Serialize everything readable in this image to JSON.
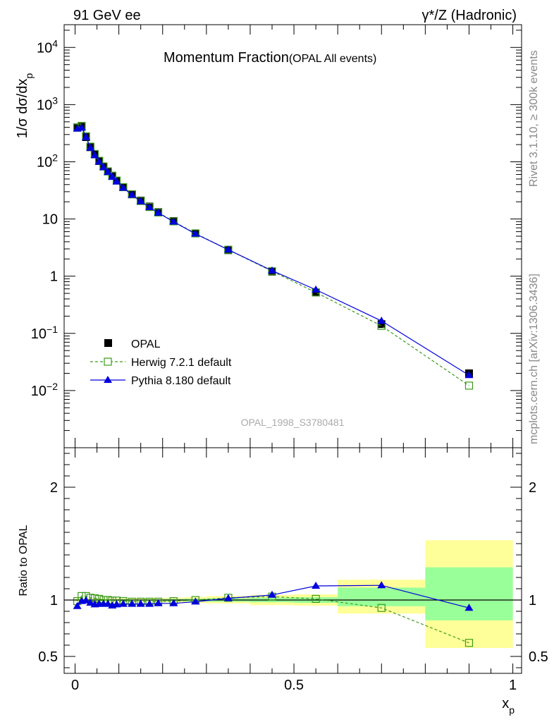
{
  "header": {
    "left": "91 GeV ee",
    "right": "γ*/Z (Hadronic)"
  },
  "side_labels": {
    "rivet": "Rivet 3.1.10, ≥ 300k events",
    "mcplots": "mcplots.cern.ch [arXiv:1306.3436]"
  },
  "chart_data": [
    {
      "type": "scatter",
      "title_main": "Momentum Fraction",
      "title_sub": "(OPAL All events)",
      "watermark": "OPAL_1998_S3780481",
      "ylabel": "1/σ dσ/dx_p",
      "yscale": "log",
      "ylim": [
        0.001,
        25000
      ],
      "xlim": [
        -0.025,
        1.02
      ],
      "grid": false,
      "legend_position": "bottom-left",
      "y_ticks": [
        {
          "value": 0.01,
          "base": "10",
          "exp": "−2"
        },
        {
          "value": 0.1,
          "base": "10",
          "exp": "−1"
        },
        {
          "value": 1,
          "base": "1",
          "exp": ""
        },
        {
          "value": 10,
          "base": "10",
          "exp": ""
        },
        {
          "value": 100,
          "base": "10",
          "exp": "2"
        },
        {
          "value": 1000,
          "base": "10",
          "exp": "3"
        },
        {
          "value": 10000,
          "base": "10",
          "exp": "4"
        }
      ],
      "x": [
        0.005,
        0.015,
        0.025,
        0.035,
        0.045,
        0.055,
        0.065,
        0.075,
        0.085,
        0.095,
        0.11,
        0.13,
        0.15,
        0.17,
        0.19,
        0.225,
        0.275,
        0.35,
        0.45,
        0.55,
        0.7,
        0.9
      ],
      "series": [
        {
          "name": "OPAL",
          "marker": "square-filled",
          "color": "#000000",
          "values": [
            400,
            410,
            270,
            180,
            135,
            103,
            83,
            68,
            57,
            47,
            36,
            27,
            21,
            16.5,
            13.2,
            9.2,
            5.6,
            2.85,
            1.2,
            0.52,
            0.145,
            0.02
          ]
        },
        {
          "name": "Herwig 7.2.1 default",
          "marker": "square-open",
          "color": "#3a9a1a",
          "dashed": true,
          "values": [
            395,
            425,
            280,
            184,
            137,
            104,
            83,
            68,
            57,
            47,
            36,
            27,
            20.6,
            16.2,
            13.0,
            9.1,
            5.6,
            2.9,
            1.22,
            0.52,
            0.135,
            0.0122
          ]
        },
        {
          "name": "Pythia 8.180 default",
          "marker": "triangle-filled",
          "color": "#0000dd",
          "dashed": false,
          "values": [
            378,
            395,
            268,
            175,
            130,
            100,
            80,
            66,
            54,
            45,
            35,
            26.3,
            20.3,
            16.0,
            12.8,
            8.95,
            5.5,
            2.9,
            1.25,
            0.58,
            0.165,
            0.0185
          ]
        }
      ]
    },
    {
      "type": "scatter",
      "ylabel": "Ratio to OPAL",
      "xlabel": "x_p",
      "ylim": [
        0.35,
        2.35
      ],
      "xlim": [
        -0.025,
        1.02
      ],
      "y_ticks": [
        "0.5",
        "1",
        "2"
      ],
      "x_ticks": [
        "0",
        "0.5",
        "1"
      ],
      "reference_line": 1,
      "x": [
        0.005,
        0.015,
        0.025,
        0.035,
        0.045,
        0.055,
        0.065,
        0.075,
        0.085,
        0.095,
        0.11,
        0.13,
        0.15,
        0.17,
        0.19,
        0.225,
        0.275,
        0.35,
        0.45,
        0.55,
        0.7,
        0.9
      ],
      "uncertainty_bands": [
        {
          "x0": 0.0,
          "x1": 0.2,
          "yellow": [
            0.985,
            1.015
          ],
          "green": [
            0.993,
            1.007
          ]
        },
        {
          "x0": 0.2,
          "x1": 0.25,
          "yellow": [
            0.98,
            1.02
          ],
          "green": [
            0.99,
            1.01
          ]
        },
        {
          "x0": 0.25,
          "x1": 0.3,
          "yellow": [
            0.975,
            1.025
          ],
          "green": [
            0.988,
            1.012
          ]
        },
        {
          "x0": 0.3,
          "x1": 0.4,
          "yellow": [
            0.97,
            1.035
          ],
          "green": [
            0.985,
            1.015
          ]
        },
        {
          "x0": 0.4,
          "x1": 0.5,
          "yellow": [
            0.955,
            1.045
          ],
          "green": [
            0.98,
            1.02
          ]
        },
        {
          "x0": 0.5,
          "x1": 0.6,
          "yellow": [
            0.95,
            1.05
          ],
          "green": [
            0.975,
            1.025
          ]
        },
        {
          "x0": 0.6,
          "x1": 0.8,
          "yellow": [
            0.88,
            1.18
          ],
          "green": [
            0.945,
            1.11
          ]
        },
        {
          "x0": 0.8,
          "x1": 1.0,
          "yellow": [
            0.575,
            1.53
          ],
          "green": [
            0.82,
            1.29
          ]
        }
      ],
      "series": [
        {
          "name": "Herwig 7.2.1 default",
          "values": [
            0.99,
            1.035,
            1.035,
            1.02,
            1.015,
            1.01,
            1.0,
            1.0,
            0.995,
            0.995,
            0.99,
            0.985,
            0.985,
            0.985,
            0.985,
            0.99,
            1.0,
            1.02,
            1.03,
            1.01,
            0.93,
            0.62
          ]
        },
        {
          "name": "Pythia 8.180 default",
          "values": [
            0.945,
            0.99,
            0.995,
            0.975,
            0.96,
            0.965,
            0.965,
            0.965,
            0.95,
            0.96,
            0.965,
            0.965,
            0.965,
            0.965,
            0.97,
            0.97,
            0.985,
            1.015,
            1.045,
            1.125,
            1.13,
            0.93
          ]
        }
      ]
    }
  ]
}
